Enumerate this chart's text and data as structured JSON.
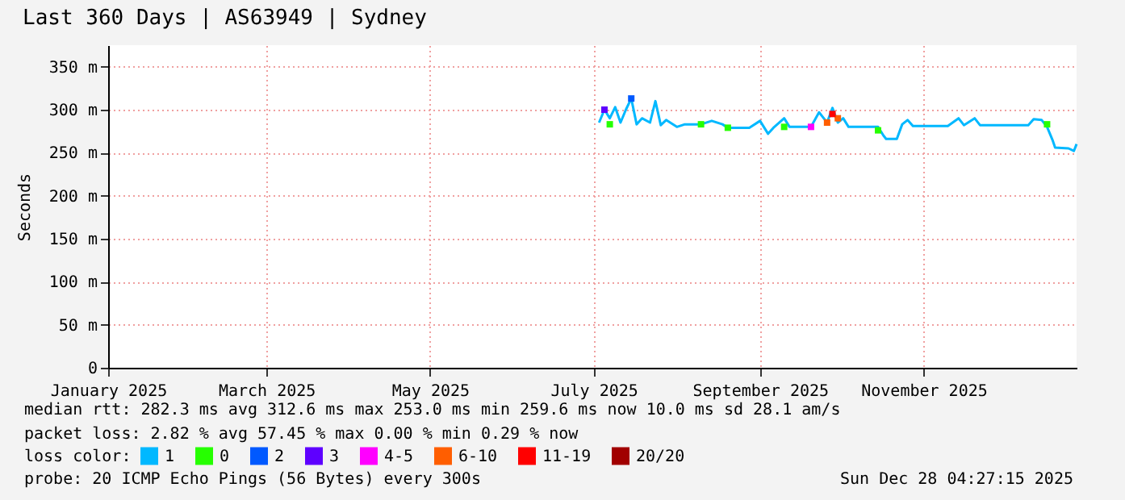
{
  "chart_data": {
    "type": "line",
    "title": "Last 360 Days | AS63949 | Sydney",
    "ylabel": "Seconds",
    "legend_title": "loss color:",
    "legend": "bottom",
    "grid": true,
    "line_style": "solid",
    "x": [
      "2025-07-03",
      "2025-07-05",
      "2025-07-07",
      "2025-07-09",
      "2025-07-11",
      "2025-07-13",
      "2025-07-15",
      "2025-07-17",
      "2025-07-19",
      "2025-07-22",
      "2025-07-24",
      "2025-07-26",
      "2025-07-28",
      "2025-08-01",
      "2025-08-04",
      "2025-08-10",
      "2025-08-14",
      "2025-08-18",
      "2025-08-20",
      "2025-08-28",
      "2025-09-01",
      "2025-09-04",
      "2025-09-06",
      "2025-09-10",
      "2025-09-12",
      "2025-09-20",
      "2025-09-23",
      "2025-09-26",
      "2025-09-28",
      "2025-09-30",
      "2025-10-02",
      "2025-10-04",
      "2025-10-15",
      "2025-10-17",
      "2025-10-18",
      "2025-10-22",
      "2025-10-24",
      "2025-10-26",
      "2025-10-28",
      "2025-11-10",
      "2025-11-14",
      "2025-11-16",
      "2025-11-20",
      "2025-11-22",
      "2025-12-10",
      "2025-12-12",
      "2025-12-15",
      "2025-12-17",
      "2025-12-19",
      "2025-12-20",
      "2025-12-25",
      "2025-12-27",
      "2025-12-28"
    ],
    "series": [
      {
        "name": "1",
        "color": "#00b8ff",
        "values": [
          285,
          300,
          290,
          303,
          285,
          300,
          313,
          283,
          290,
          285,
          310,
          282,
          288,
          280,
          283,
          283,
          287,
          283,
          279,
          279,
          287,
          272,
          279,
          290,
          280,
          280,
          297,
          285,
          302,
          285,
          290,
          280,
          280,
          270,
          266,
          266,
          283,
          288,
          281,
          281,
          290,
          282,
          290,
          282,
          282,
          289,
          288,
          280,
          265,
          256,
          255,
          252,
          260
        ]
      },
      {
        "name": "0",
        "color": "#26ff00",
        "type": "scatter",
        "marker": "square",
        "x": [
          "2025-07-07",
          "2025-08-10",
          "2025-08-20",
          "2025-09-10",
          "2025-10-15",
          "2025-12-17"
        ],
        "values": [
          283,
          283,
          279,
          280,
          276,
          283
        ]
      },
      {
        "name": "2",
        "color": "#0059ff",
        "type": "scatter",
        "marker": "square",
        "x": [
          "2025-07-15"
        ],
        "values": [
          313
        ]
      },
      {
        "name": "3",
        "color": "#5e00ff",
        "type": "scatter",
        "marker": "square",
        "x": [
          "2025-07-05"
        ],
        "values": [
          300
        ]
      },
      {
        "name": "4-5",
        "color": "#ff00ff",
        "type": "scatter",
        "marker": "square",
        "x": [
          "2025-09-20"
        ],
        "values": [
          280
        ]
      },
      {
        "name": "6-10",
        "color": "#ff5e00",
        "type": "scatter",
        "marker": "square",
        "x": [
          "2025-09-26",
          "2025-09-30"
        ],
        "values": [
          285,
          290
        ]
      },
      {
        "name": "11-19",
        "color": "#ff0000",
        "type": "scatter",
        "marker": "square",
        "x": [
          "2025-09-28"
        ],
        "values": [
          295
        ]
      },
      {
        "name": "20/20",
        "color": "#a10000",
        "type": "scatter",
        "marker": "square",
        "values": [
          null,
          null,
          null,
          null,
          null,
          null,
          null,
          null,
          null,
          null,
          null,
          null,
          null,
          null,
          null,
          null,
          null,
          null,
          null,
          null,
          null,
          null,
          null,
          null,
          null,
          null,
          null,
          null,
          null,
          null,
          null,
          null,
          null,
          null,
          null,
          null,
          null,
          null,
          null,
          null,
          null,
          null,
          null,
          null,
          null,
          null,
          null,
          null,
          null,
          null,
          null,
          null,
          null
        ]
      }
    ],
    "xlim": [
      "2025-01-01",
      "2025-12-28"
    ],
    "xticks": [
      {
        "value": "2025-01-01",
        "label": "January 2025"
      },
      {
        "value": "2025-03-01",
        "label": "March 2025"
      },
      {
        "value": "2025-05-01",
        "label": "May 2025"
      },
      {
        "value": "2025-07-01",
        "label": "July 2025"
      },
      {
        "value": "2025-09-01",
        "label": "September 2025"
      },
      {
        "value": "2025-11-01",
        "label": "November 2025"
      }
    ],
    "ylim": [
      0,
      375
    ],
    "yticks": [
      0,
      {
        "value": 50,
        "label": "50 m"
      },
      {
        "value": 100,
        "label": "100 m"
      },
      {
        "value": 150,
        "label": "150 m"
      },
      {
        "value": 200,
        "label": "200 m"
      },
      {
        "value": 250,
        "label": "250 m"
      },
      {
        "value": 300,
        "label": "300 m"
      },
      {
        "value": 350,
        "label": "350 m"
      }
    ],
    "annotations": [
      "median rtt:  282.3 ms avg  312.6 ms max  253.0 ms min  259.6 ms now  10.0 ms sd  28.1   am/s",
      "packet loss: 2.82 % avg  57.45 % max  0.00 % min  0.29 % now",
      "probe:       20 ICMP Echo Pings (56 Bytes) every 300s",
      "Sun Dec 28 04:27:15 2025"
    ]
  }
}
